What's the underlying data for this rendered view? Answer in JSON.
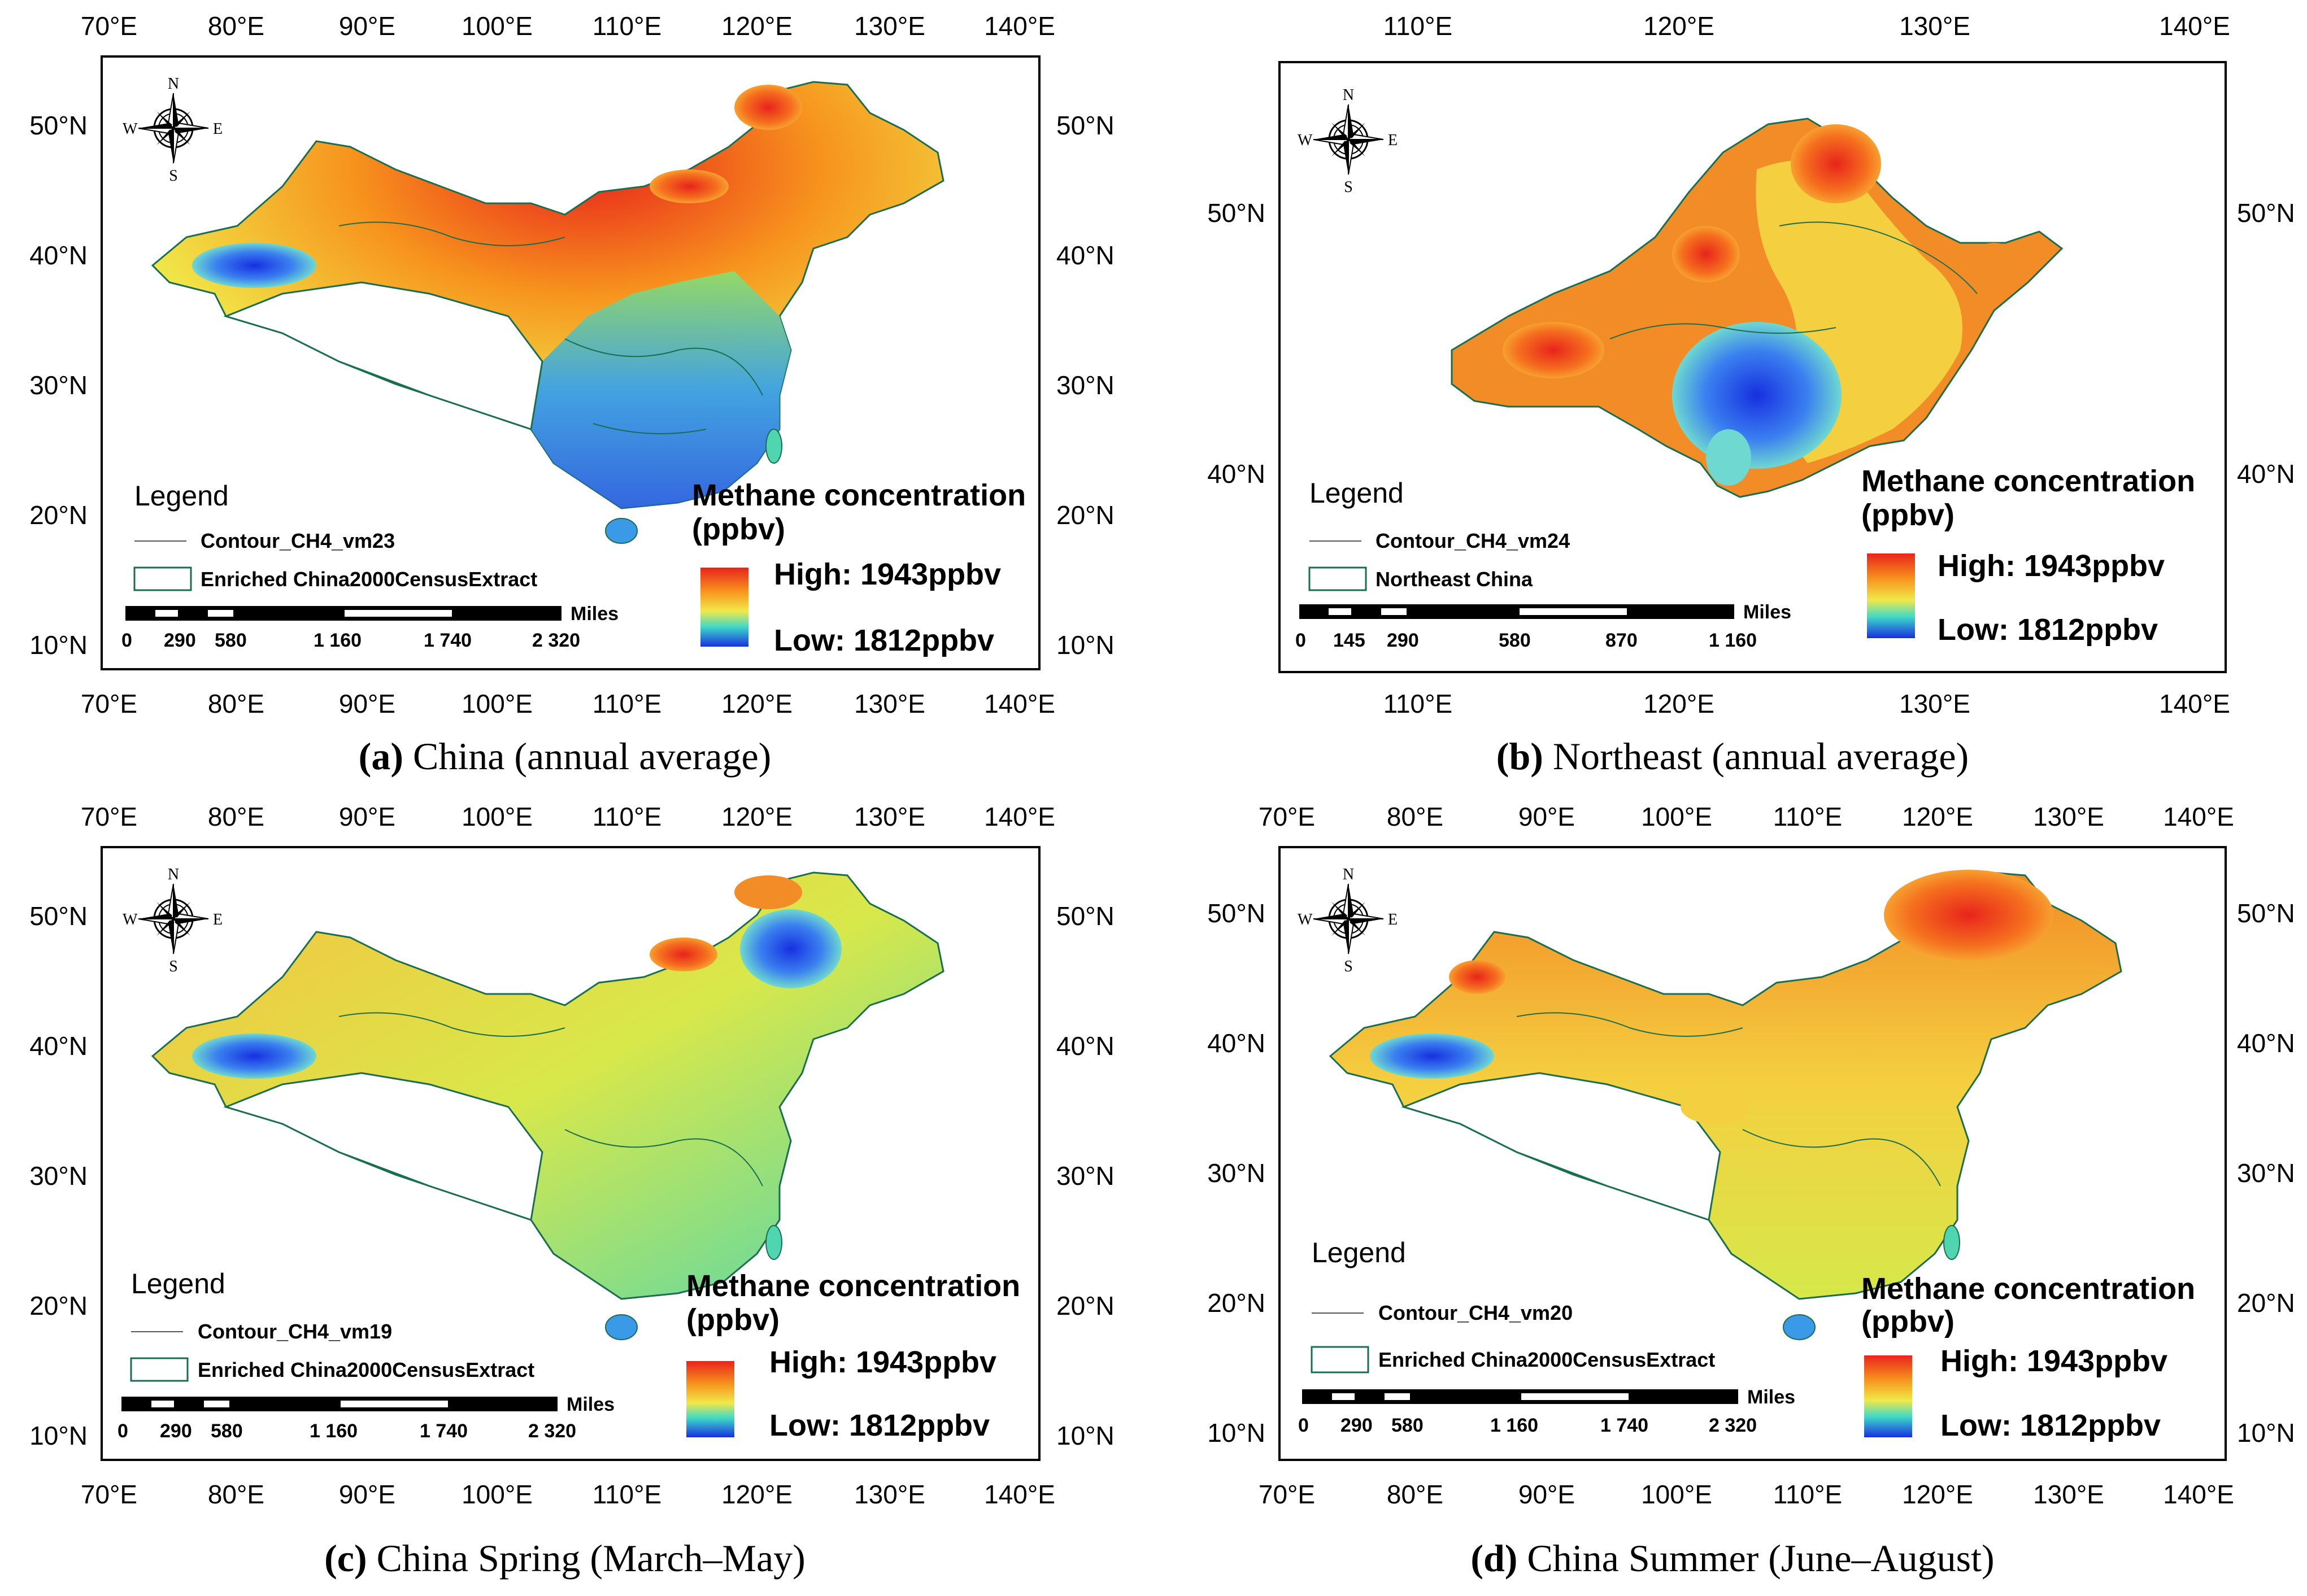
{
  "common": {
    "colors": {
      "high": "#e8241c",
      "mid": "#f0e94a",
      "low": "#1730e0",
      "frame": "#000000",
      "contour": "#1a6e50"
    },
    "compass": {
      "n": "N",
      "s": "S",
      "e": "E",
      "w": "W"
    },
    "legend_title": "Legend",
    "legend_unit_title_1": "Methane concentration",
    "legend_unit_title_2": "(ppbv)",
    "high_label": "High: 1943ppbv",
    "low_label": "Low: 1812ppbv",
    "miles_label": "Miles"
  },
  "panels": [
    {
      "id": "a",
      "caption_letter": "(a)",
      "caption_text": " China (annual average)",
      "lon_labels": [
        "70°E",
        "80°E",
        "90°E",
        "100°E",
        "110°E",
        "120°E",
        "130°E",
        "140°E"
      ],
      "lat_labels": [
        "50°N",
        "40°N",
        "30°N",
        "20°N",
        "10°N"
      ],
      "contour_label": "Contour_CH4_vm23",
      "boundary_label": "Enriched China2000CensusExtract",
      "scale_labels": [
        "0",
        "290",
        "580",
        "1 160",
        "1 740",
        "2 320"
      ],
      "color_mode": "annual"
    },
    {
      "id": "b",
      "caption_letter": "(b)",
      "caption_text": " Northeast (annual average)",
      "lon_labels": [
        "110°E",
        "120°E",
        "130°E",
        "140°E"
      ],
      "lat_labels": [
        "50°N",
        "40°N"
      ],
      "contour_label": "Contour_CH4_vm24",
      "boundary_label": "Northeast China",
      "scale_labels": [
        "0",
        "145",
        "290",
        "580",
        "870",
        "1 160"
      ],
      "color_mode": "northeast"
    },
    {
      "id": "c",
      "caption_letter": "(c)",
      "caption_text": " China Spring (March–May)",
      "lon_labels": [
        "70°E",
        "80°E",
        "90°E",
        "100°E",
        "110°E",
        "120°E",
        "130°E",
        "140°E"
      ],
      "lat_labels": [
        "50°N",
        "40°N",
        "30°N",
        "20°N",
        "10°N"
      ],
      "contour_label": "Contour_CH4_vm19",
      "boundary_label": "Enriched China2000CensusExtract",
      "scale_labels": [
        "0",
        "290",
        "580",
        "1 160",
        "1 740",
        "2 320"
      ],
      "color_mode": "spring"
    },
    {
      "id": "d",
      "caption_letter": "(d)",
      "caption_text": " China Summer (June–August)",
      "lon_labels": [
        "70°E",
        "80°E",
        "90°E",
        "100°E",
        "110°E",
        "120°E",
        "130°E",
        "140°E"
      ],
      "lat_labels": [
        "50°N",
        "40°N",
        "30°N",
        "20°N",
        "10°N"
      ],
      "contour_label": "Contour_CH4_vm20",
      "boundary_label": "Enriched China2000CensusExtract",
      "scale_labels": [
        "0",
        "290",
        "580",
        "1 160",
        "1 740",
        "2 320"
      ],
      "color_mode": "summer"
    }
  ]
}
